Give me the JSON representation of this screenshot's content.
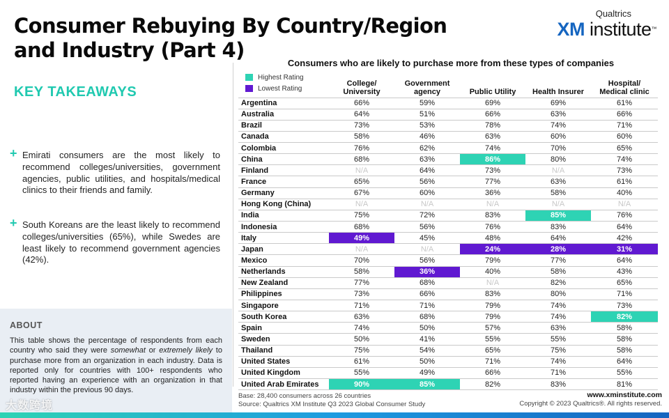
{
  "title": "Consumer Rebuying By Country/Region and Industry (Part 4)",
  "logo": {
    "top": "Qualtrics",
    "xm": "XM",
    "main": " institute",
    "tm": "™"
  },
  "key_takeaways": {
    "title": "KEY TAKEAWAYS",
    "items": [
      "Emirati consumers are the most likely to recommend colleges/universities, government agencies, public utilities, and hospitals/medical clinics to their friends and family.",
      "South Koreans are the least likely to recommend colleges/universities (65%), while Swedes are least likely to recommend government agencies (42%)."
    ]
  },
  "about": {
    "title": "ABOUT",
    "text_before": "This table shows the percentage of respondents from each country who said they were ",
    "italic1": "somewhat",
    "text_mid": " or ",
    "italic2": "extremely likely",
    "text_after": " to purchase more from an organization in each industry. Data is reported only for countries with 100+ respondents who reported having an experience with an organization in that industry within the previous 90 days."
  },
  "table": {
    "title": "Consumers who are likely to purchase more from these types of companies",
    "legend": {
      "highest": "Highest Rating",
      "lowest": "Lowest Rating"
    },
    "columns": [
      "College/\nUniversity",
      "Government\nagency",
      "Public Utility",
      "Health Insurer",
      "Hospital/\nMedical clinic"
    ],
    "rows": [
      {
        "country": "Argentina",
        "values": [
          "66%",
          "59%",
          "69%",
          "69%",
          "61%"
        ],
        "marks": [
          "",
          "",
          "",
          "",
          ""
        ]
      },
      {
        "country": "Australia",
        "values": [
          "64%",
          "51%",
          "66%",
          "63%",
          "66%"
        ],
        "marks": [
          "",
          "",
          "",
          "",
          ""
        ]
      },
      {
        "country": "Brazil",
        "values": [
          "73%",
          "53%",
          "78%",
          "74%",
          "71%"
        ],
        "marks": [
          "",
          "",
          "",
          "",
          ""
        ]
      },
      {
        "country": "Canada",
        "values": [
          "58%",
          "46%",
          "63%",
          "60%",
          "60%"
        ],
        "marks": [
          "",
          "",
          "",
          "",
          ""
        ]
      },
      {
        "country": "Colombia",
        "values": [
          "76%",
          "62%",
          "74%",
          "70%",
          "65%"
        ],
        "marks": [
          "",
          "",
          "",
          "",
          ""
        ]
      },
      {
        "country": "China",
        "values": [
          "68%",
          "63%",
          "86%",
          "80%",
          "74%"
        ],
        "marks": [
          "",
          "",
          "hi",
          "",
          ""
        ]
      },
      {
        "country": "Finland",
        "values": [
          "N/A",
          "64%",
          "73%",
          "N/A",
          "73%"
        ],
        "marks": [
          "na",
          "",
          "",
          "na",
          ""
        ]
      },
      {
        "country": "France",
        "values": [
          "65%",
          "56%",
          "77%",
          "63%",
          "61%"
        ],
        "marks": [
          "",
          "",
          "",
          "",
          ""
        ]
      },
      {
        "country": "Germany",
        "values": [
          "67%",
          "60%",
          "36%",
          "58%",
          "40%"
        ],
        "marks": [
          "",
          "",
          "",
          "",
          ""
        ]
      },
      {
        "country": "Hong Kong (China)",
        "values": [
          "N/A",
          "N/A",
          "N/A",
          "N/A",
          "N/A"
        ],
        "marks": [
          "na",
          "na",
          "na",
          "na",
          "na"
        ]
      },
      {
        "country": "India",
        "values": [
          "75%",
          "72%",
          "83%",
          "85%",
          "76%"
        ],
        "marks": [
          "",
          "",
          "",
          "hi",
          ""
        ]
      },
      {
        "country": "Indonesia",
        "values": [
          "68%",
          "56%",
          "76%",
          "83%",
          "64%"
        ],
        "marks": [
          "",
          "",
          "",
          "",
          ""
        ]
      },
      {
        "country": "Italy",
        "values": [
          "49%",
          "45%",
          "48%",
          "64%",
          "42%"
        ],
        "marks": [
          "lo",
          "",
          "",
          "",
          ""
        ]
      },
      {
        "country": "Japan",
        "values": [
          "N/A",
          "N/A",
          "24%",
          "28%",
          "31%"
        ],
        "marks": [
          "na",
          "na",
          "lo",
          "lo",
          "lo"
        ]
      },
      {
        "country": "Mexico",
        "values": [
          "70%",
          "56%",
          "79%",
          "77%",
          "64%"
        ],
        "marks": [
          "",
          "",
          "",
          "",
          ""
        ]
      },
      {
        "country": "Netherlands",
        "values": [
          "58%",
          "36%",
          "40%",
          "58%",
          "43%"
        ],
        "marks": [
          "",
          "lo",
          "",
          "",
          ""
        ]
      },
      {
        "country": "New Zealand",
        "values": [
          "77%",
          "68%",
          "N/A",
          "82%",
          "65%"
        ],
        "marks": [
          "",
          "",
          "na",
          "",
          ""
        ]
      },
      {
        "country": "Philippines",
        "values": [
          "73%",
          "66%",
          "83%",
          "80%",
          "71%"
        ],
        "marks": [
          "",
          "",
          "",
          "",
          ""
        ]
      },
      {
        "country": "Singapore",
        "values": [
          "71%",
          "71%",
          "79%",
          "74%",
          "73%"
        ],
        "marks": [
          "",
          "",
          "",
          "",
          ""
        ]
      },
      {
        "country": "South Korea",
        "values": [
          "63%",
          "68%",
          "79%",
          "74%",
          "82%"
        ],
        "marks": [
          "",
          "",
          "",
          "",
          "hi"
        ]
      },
      {
        "country": "Spain",
        "values": [
          "74%",
          "50%",
          "57%",
          "63%",
          "58%"
        ],
        "marks": [
          "",
          "",
          "",
          "",
          ""
        ]
      },
      {
        "country": "Sweden",
        "values": [
          "50%",
          "41%",
          "55%",
          "55%",
          "58%"
        ],
        "marks": [
          "",
          "",
          "",
          "",
          ""
        ]
      },
      {
        "country": "Thailand",
        "values": [
          "75%",
          "54%",
          "65%",
          "75%",
          "58%"
        ],
        "marks": [
          "",
          "",
          "",
          "",
          ""
        ]
      },
      {
        "country": "United States",
        "values": [
          "61%",
          "50%",
          "71%",
          "74%",
          "64%"
        ],
        "marks": [
          "",
          "",
          "",
          "",
          ""
        ]
      },
      {
        "country": "United Kingdom",
        "values": [
          "55%",
          "49%",
          "66%",
          "71%",
          "55%"
        ],
        "marks": [
          "",
          "",
          "",
          "",
          ""
        ]
      },
      {
        "country": "United Arab Emirates",
        "values": [
          "90%",
          "85%",
          "82%",
          "83%",
          "81%"
        ],
        "marks": [
          "hi",
          "hi",
          "",
          "",
          ""
        ]
      }
    ]
  },
  "footer": {
    "base": "Base: 28,400 consumers across 26 countries",
    "source": "Source: Qualtrics XM Institute Q3 2023 Global Consumer Study",
    "url": "www.xminstitute.com",
    "copyright": "Copyright © 2023 Qualtrics®. All rights reserved."
  },
  "watermark": "大数跨境",
  "colors": {
    "highest": "#2ed3b4",
    "lowest": "#6019d1",
    "accent": "#20c9b0"
  }
}
